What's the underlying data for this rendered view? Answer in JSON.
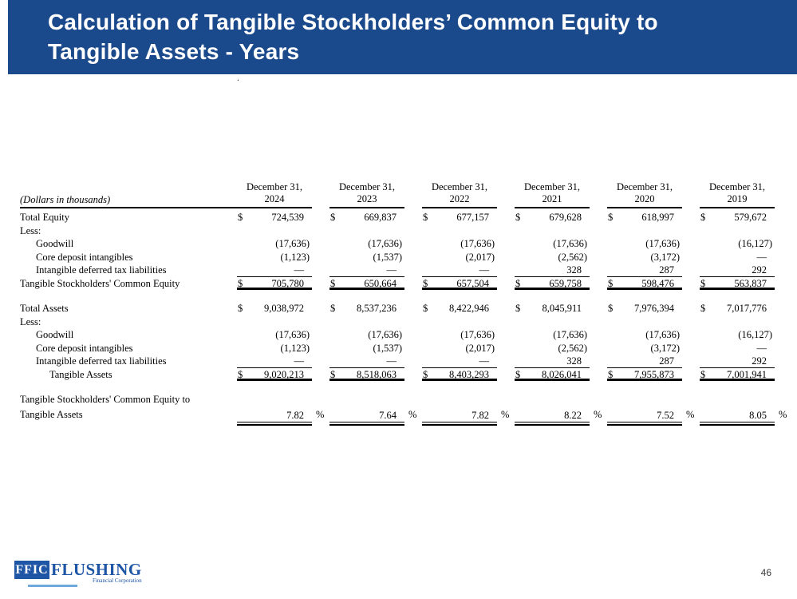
{
  "slide": {
    "title_line1": "Calculation of Tangible Stockholders’ Common Equity to",
    "title_line2": "Tangible Assets - Years",
    "stray_dot": ".",
    "page_number": "46"
  },
  "logo": {
    "box_text": "FFIC",
    "name": "FLUSHING",
    "subtitle": "Financial Corporation"
  },
  "colors": {
    "banner_blue": "#1b4a8c",
    "logo_blue": "#1e55a4",
    "logo_light_blue": "#6fa8dc",
    "text_black": "#000000"
  },
  "table": {
    "units_label": "(Dollars in thousands)",
    "column_headers": [
      {
        "line1": "December 31,",
        "line2": "2024"
      },
      {
        "line1": "December 31,",
        "line2": "2023"
      },
      {
        "line1": "December 31,",
        "line2": "2022"
      },
      {
        "line1": "December 31,",
        "line2": "2021"
      },
      {
        "line1": "December 31,",
        "line2": "2020"
      },
      {
        "line1": "December 31,",
        "line2": "2019"
      }
    ],
    "rows": [
      {
        "label": "Total Equity",
        "indent": 0,
        "dollar": true,
        "values": [
          "724,539",
          "669,837",
          "677,157",
          "679,628",
          "618,997",
          "579,672"
        ]
      },
      {
        "label": "Less:",
        "indent": 0,
        "values": []
      },
      {
        "label": "Goodwill",
        "indent": 1,
        "values": [
          "(17,636)",
          "(17,636)",
          "(17,636)",
          "(17,636)",
          "(17,636)",
          "(16,127)"
        ]
      },
      {
        "label": "Core deposit intangibles",
        "indent": 1,
        "values": [
          "(1,123)",
          "(1,537)",
          "(2,017)",
          "(2,562)",
          "(3,172)",
          "—"
        ]
      },
      {
        "label": "Intangible deferred tax liabilities",
        "indent": 1,
        "underline": true,
        "values": [
          "—",
          "—",
          "—",
          "328",
          "287",
          "292"
        ]
      },
      {
        "label": "Tangible Stockholders' Common Equity",
        "indent": 0,
        "dollar": true,
        "total": true,
        "values": [
          "705,780",
          "650,664",
          "657,504",
          "659,758",
          "598,476",
          "563,837"
        ]
      },
      {
        "spacer": true
      },
      {
        "label": "Total Assets",
        "indent": 0,
        "dollar": true,
        "values": [
          "9,038,972",
          "8,537,236",
          "8,422,946",
          "8,045,911",
          "7,976,394",
          "7,017,776"
        ]
      },
      {
        "label": "Less:",
        "indent": 0,
        "values": []
      },
      {
        "label": "Goodwill",
        "indent": 1,
        "values": [
          "(17,636)",
          "(17,636)",
          "(17,636)",
          "(17,636)",
          "(17,636)",
          "(16,127)"
        ]
      },
      {
        "label": "Core deposit intangibles",
        "indent": 1,
        "values": [
          "(1,123)",
          "(1,537)",
          "(2,017)",
          "(2,562)",
          "(3,172)",
          "—"
        ]
      },
      {
        "label": "Intangible deferred tax liabilities",
        "indent": 1,
        "underline": true,
        "values": [
          "—",
          "—",
          "—",
          "328",
          "287",
          "292"
        ]
      },
      {
        "label": "Tangible Assets",
        "indent": 2,
        "dollar": true,
        "total": true,
        "values": [
          "9,020,213",
          "8,518,063",
          "8,403,293",
          "8,026,041",
          "7,955,873",
          "7,001,941"
        ]
      },
      {
        "spacer": true
      },
      {
        "label": "Tangible Stockholders' Common Equity to",
        "indent": 0,
        "values": []
      },
      {
        "label": "Tangible Assets",
        "indent": 0,
        "percent": true,
        "percent_sign": "%",
        "values": [
          "7.82",
          "7.64",
          "7.82",
          "8.22",
          "7.52",
          "8.05"
        ]
      }
    ]
  }
}
